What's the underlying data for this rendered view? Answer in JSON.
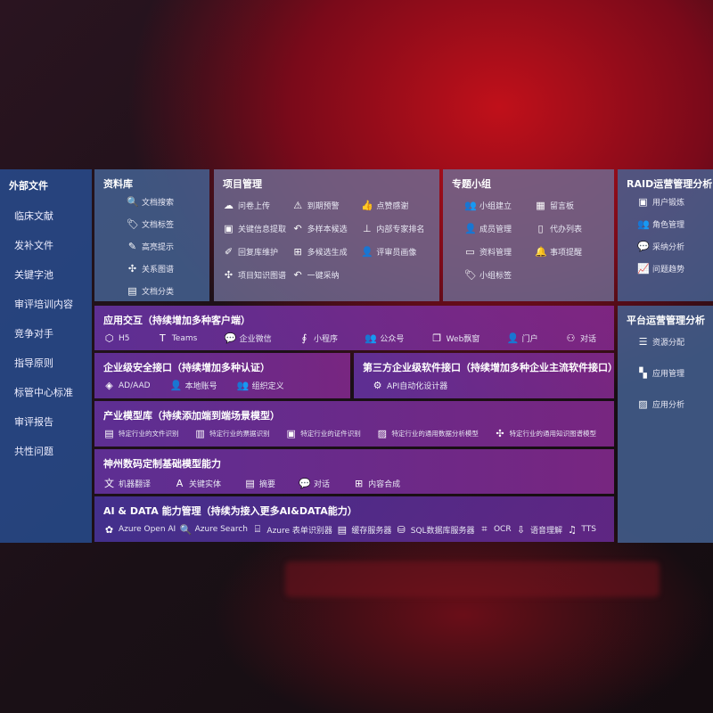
{
  "sidebar": {
    "title": "外部文件",
    "items": [
      "临床文献",
      "发补文件",
      "关键字池",
      "审评培训内容",
      "竞争对手",
      "指导原则",
      "标管中心标准",
      "审评报告",
      "共性问题"
    ]
  },
  "library": {
    "title": "资料库",
    "items": [
      {
        "icon": "doc-search",
        "glyph": "🔍",
        "label": "文档搜索"
      },
      {
        "icon": "tag",
        "glyph": "🏷",
        "label": "文档标签"
      },
      {
        "icon": "pen",
        "glyph": "✎",
        "label": "高亮提示"
      },
      {
        "icon": "graph",
        "glyph": "✣",
        "label": "关系图谱"
      },
      {
        "icon": "doc-category",
        "glyph": "▤",
        "label": "文档分类"
      }
    ]
  },
  "project": {
    "title": "项目管理",
    "items": [
      {
        "icon": "cloud-upload",
        "glyph": "☁",
        "label": "问卷上传"
      },
      {
        "icon": "alarm",
        "glyph": "⚠",
        "label": "到期预警"
      },
      {
        "icon": "thumbs-up",
        "glyph": "👍",
        "label": "点赞感谢"
      },
      {
        "icon": "extract",
        "glyph": "▣",
        "label": "关键信息提取"
      },
      {
        "icon": "reply",
        "glyph": "↶",
        "label": "多样本候选"
      },
      {
        "icon": "rank",
        "glyph": "⊥",
        "label": "内部专家排名"
      },
      {
        "icon": "edit",
        "glyph": "✐",
        "label": "回复库维护"
      },
      {
        "icon": "puzzle",
        "glyph": "⊞",
        "label": "多候选生成"
      },
      {
        "icon": "user",
        "glyph": "👤",
        "label": "评审员画像"
      },
      {
        "icon": "knowledge-graph",
        "glyph": "✣",
        "label": "项目知识图谱"
      },
      {
        "icon": "reply",
        "glyph": "↶",
        "label": "一键采纳"
      }
    ]
  },
  "group": {
    "title": "专题小组",
    "items": [
      {
        "icon": "users",
        "glyph": "👥",
        "label": "小组建立"
      },
      {
        "icon": "bbs",
        "glyph": "▦",
        "label": "留言板"
      },
      {
        "icon": "user-add",
        "glyph": "👤",
        "label": "成员管理"
      },
      {
        "icon": "clipboard",
        "glyph": "▯",
        "label": "代办列表"
      },
      {
        "icon": "folder",
        "glyph": "▭",
        "label": "资料管理"
      },
      {
        "icon": "bell",
        "glyph": "🔔",
        "label": "事项提醒"
      },
      {
        "icon": "tag",
        "glyph": "🏷",
        "label": "小组标签"
      }
    ]
  },
  "raid": {
    "title": "RAID运营管理分析",
    "items": [
      {
        "icon": "id-card",
        "glyph": "▣",
        "label": "用户锻炼"
      },
      {
        "icon": "users",
        "glyph": "👥",
        "label": "角色管理"
      },
      {
        "icon": "qa",
        "glyph": "💬",
        "label": "采纳分析"
      },
      {
        "icon": "trend",
        "glyph": "📈",
        "label": "问题趋势"
      }
    ]
  },
  "platform": {
    "title": "平台运营管理分析",
    "items": [
      {
        "icon": "checklist",
        "glyph": "☰",
        "label": "资源分配"
      },
      {
        "icon": "apps",
        "glyph": "▚",
        "label": "应用管理"
      },
      {
        "icon": "analytics",
        "glyph": "▨",
        "label": "应用分析"
      }
    ]
  },
  "interaction": {
    "title": "应用交互（持续增加多种客户端）",
    "items": [
      {
        "icon": "html5",
        "glyph": "⬡",
        "label": "H5"
      },
      {
        "icon": "teams",
        "glyph": "T",
        "label": "Teams"
      },
      {
        "icon": "wechat-work",
        "glyph": "💬",
        "label": "企业微信"
      },
      {
        "icon": "mini-program",
        "glyph": "∮",
        "label": "小程序"
      },
      {
        "icon": "official-account",
        "glyph": "👥",
        "label": "公众号"
      },
      {
        "icon": "web-window",
        "glyph": "❐",
        "label": "Web飘窗"
      },
      {
        "icon": "portal",
        "glyph": "👤",
        "label": "门户"
      },
      {
        "icon": "chat",
        "glyph": "⚇",
        "label": "对话"
      }
    ]
  },
  "security": {
    "title": "企业级安全接口（持续增加多种认证）",
    "items": [
      {
        "icon": "aad",
        "glyph": "◈",
        "label": "AD/AAD"
      },
      {
        "icon": "local-account",
        "glyph": "👤",
        "label": "本地账号"
      },
      {
        "icon": "org",
        "glyph": "👥",
        "label": "组织定义"
      }
    ]
  },
  "thirdparty": {
    "title": "第三方企业级软件接口（持续增加多种企业主流软件接口）",
    "items": [
      {
        "icon": "gear",
        "glyph": "⚙",
        "label": "API自动化设计器"
      }
    ]
  },
  "industry": {
    "title": "产业模型库（持续添加端到端场景模型）",
    "items": [
      {
        "icon": "file",
        "glyph": "▤",
        "label": "特定行业的文件识别"
      },
      {
        "icon": "receipt",
        "glyph": "▥",
        "label": "特定行业的票据识别"
      },
      {
        "icon": "id-card",
        "glyph": "▣",
        "label": "特定行业的证件识别"
      },
      {
        "icon": "chart",
        "glyph": "▨",
        "label": "特定行业的通用数据分析模型"
      },
      {
        "icon": "knowledge-graph",
        "glyph": "✣",
        "label": "特定行业的通用知识图谱模型"
      }
    ]
  },
  "base": {
    "title": "神州数码定制基础模型能力",
    "items": [
      {
        "icon": "translate",
        "glyph": "文",
        "label": "机器翻译"
      },
      {
        "icon": "entity",
        "glyph": "A",
        "label": "关键实体"
      },
      {
        "icon": "summary",
        "glyph": "▤",
        "label": "摘要"
      },
      {
        "icon": "chat",
        "glyph": "💬",
        "label": "对话"
      },
      {
        "icon": "compose",
        "glyph": "⊞",
        "label": "内容合成"
      }
    ]
  },
  "aidata": {
    "title": "AI & DATA 能力管理（持续为接入更多AI&DATA能力）",
    "items": [
      {
        "icon": "openai",
        "glyph": "✿",
        "label": "Azure Open AI"
      },
      {
        "icon": "search",
        "glyph": "🔍",
        "label": "Azure Search"
      },
      {
        "icon": "form-recognizer",
        "glyph": "⌸",
        "label": "Azure 表单识别器"
      },
      {
        "icon": "cache",
        "glyph": "▤",
        "label": "缓存服务器"
      },
      {
        "icon": "sql",
        "glyph": "⛁",
        "label": "SQL数据库服务器"
      },
      {
        "icon": "ocr",
        "glyph": "⌗",
        "label": "OCR"
      },
      {
        "icon": "speech",
        "glyph": "⇩",
        "label": "语音理解"
      },
      {
        "icon": "tts",
        "glyph": "♫",
        "label": "TTS"
      }
    ]
  }
}
